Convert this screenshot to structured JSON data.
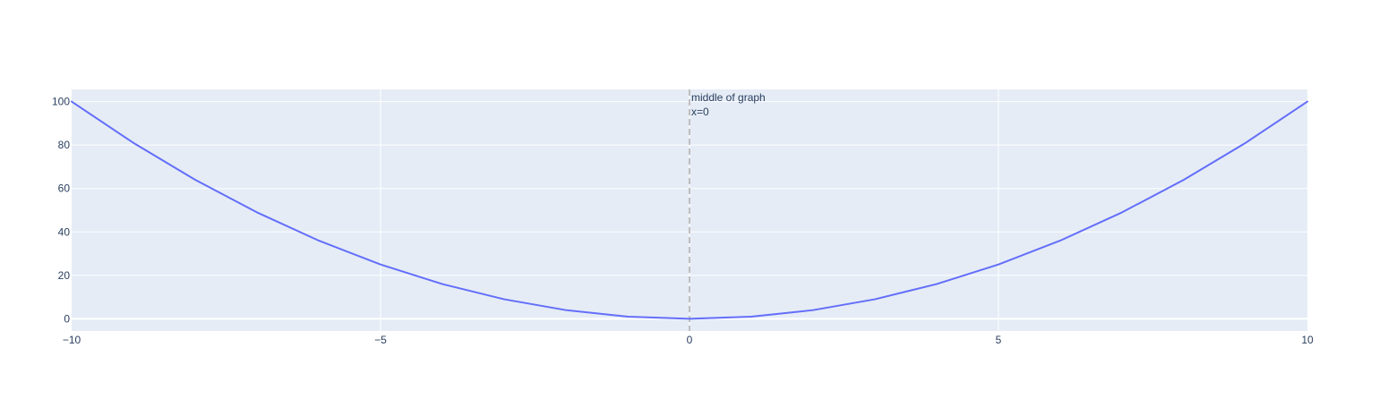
{
  "chart_data": {
    "type": "line",
    "x": [
      -10,
      -9,
      -8,
      -7,
      -6,
      -5,
      -4,
      -3,
      -2,
      -1,
      0,
      1,
      2,
      3,
      4,
      5,
      6,
      7,
      8,
      9,
      10
    ],
    "series": [
      {
        "values": [
          100,
          81,
          64,
          49,
          36,
          25,
          16,
          9,
          4,
          1,
          0,
          1,
          4,
          9,
          16,
          25,
          36,
          49,
          64,
          81,
          100
        ],
        "color": "#636efa"
      }
    ],
    "xlim": [
      -10,
      10
    ],
    "ylim": [
      -5.6,
      105.6
    ],
    "xticks": [
      -10,
      -5,
      0,
      5,
      10
    ],
    "xtick_labels": [
      "−10",
      "−5",
      "0",
      "5",
      "10"
    ],
    "yticks": [
      0,
      20,
      40,
      60,
      80,
      100
    ],
    "ytick_labels": [
      "0",
      "20",
      "40",
      "60",
      "80",
      "100"
    ],
    "grid": true,
    "legend": "none",
    "vline": {
      "x": 0,
      "style": "dashed",
      "color": "#bfbfbf",
      "annotation_lines": [
        "middle of graph",
        "x=0"
      ]
    },
    "colors": {
      "plot_bg": "#e5ecf6",
      "paper_bg": "#ffffff",
      "grid": "#ffffff",
      "tick_text": "#2a3f5f",
      "line": "#636efa"
    }
  }
}
